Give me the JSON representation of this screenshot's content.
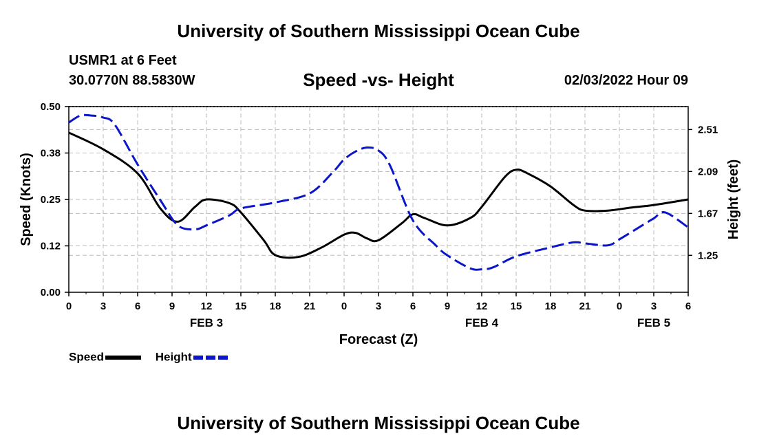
{
  "header": {
    "title": "University of Southern Mississippi Ocean Cube",
    "station": "USMR1 at 6 Feet",
    "coordinates": "30.0770N  88.5830W",
    "chart_title": "Speed -vs- Height",
    "datetime": "02/03/2022 Hour 09"
  },
  "footer": {
    "title": "University of Southern Mississippi Ocean Cube"
  },
  "legend": {
    "speed_label": "Speed",
    "height_label": "Height"
  },
  "colors": {
    "speed": "#000000",
    "height": "#0b16c9",
    "grid": "#bbbbbb"
  },
  "chart_data": {
    "type": "line",
    "title": "Speed -vs- Height",
    "xlabel": "Forecast (Z)",
    "ylabel": "Speed (Knots)",
    "y2label": "Height (feet)",
    "x_hours_range": [
      0,
      54
    ],
    "x_tick_hours": [
      0,
      3,
      6,
      9,
      12,
      15,
      18,
      21,
      24,
      27,
      30,
      33,
      36,
      39,
      42,
      45,
      48,
      51,
      54
    ],
    "x_tick_labels": [
      "0",
      "3",
      "6",
      "9",
      "12",
      "15",
      "18",
      "21",
      "0",
      "3",
      "6",
      "9",
      "12",
      "15",
      "18",
      "21",
      "0",
      "3",
      "6"
    ],
    "date_labels": [
      {
        "hour": 12,
        "label": "FEB 3"
      },
      {
        "hour": 36,
        "label": "FEB 4"
      },
      {
        "hour": 51,
        "label": "FEB 5"
      }
    ],
    "y_left": {
      "range": [
        0,
        0.5
      ],
      "ticks": [
        0.0,
        0.125,
        0.25,
        0.375,
        0.5
      ],
      "tick_labels": [
        "0.00",
        "0.12",
        "0.25",
        "0.38",
        "0.50"
      ]
    },
    "y_right": {
      "range": [
        0.88,
        2.74
      ],
      "ticks": [
        1.25,
        1.67,
        2.09,
        2.51
      ],
      "tick_labels": [
        "1.25",
        "1.67",
        "2.09",
        "2.51"
      ]
    },
    "grid": true,
    "series": [
      {
        "name": "Speed",
        "axis": "left",
        "style": "solid",
        "x": [
          0,
          3,
          6,
          8,
          9.5,
          11,
          12,
          14,
          15,
          17,
          18,
          20,
          22,
          24,
          25,
          26,
          27,
          29,
          30,
          31,
          33,
          35,
          36,
          38,
          39,
          40,
          42,
          44,
          45,
          47,
          49,
          51,
          54
        ],
        "y": [
          0.43,
          0.385,
          0.32,
          0.225,
          0.19,
          0.23,
          0.25,
          0.24,
          0.215,
          0.14,
          0.1,
          0.095,
          0.12,
          0.155,
          0.16,
          0.145,
          0.14,
          0.185,
          0.21,
          0.2,
          0.18,
          0.2,
          0.23,
          0.31,
          0.33,
          0.32,
          0.285,
          0.235,
          0.22,
          0.22,
          0.228,
          0.235,
          0.25
        ]
      },
      {
        "name": "Height",
        "axis": "right",
        "style": "dashed",
        "x": [
          0,
          1,
          2,
          3,
          4,
          6,
          8,
          9.5,
          11,
          12,
          14,
          15,
          18,
          21,
          23,
          24,
          25,
          26,
          27,
          28,
          30,
          32,
          33,
          35,
          36,
          37,
          39,
          42,
          44,
          45,
          47,
          48,
          50,
          51,
          52,
          54
        ],
        "y": [
          2.58,
          2.65,
          2.65,
          2.63,
          2.56,
          2.16,
          1.8,
          1.55,
          1.51,
          1.55,
          1.65,
          1.72,
          1.78,
          1.87,
          2.08,
          2.21,
          2.29,
          2.33,
          2.3,
          2.15,
          1.6,
          1.35,
          1.25,
          1.12,
          1.11,
          1.13,
          1.24,
          1.33,
          1.38,
          1.37,
          1.35,
          1.41,
          1.55,
          1.62,
          1.68,
          1.53
        ]
      }
    ]
  }
}
